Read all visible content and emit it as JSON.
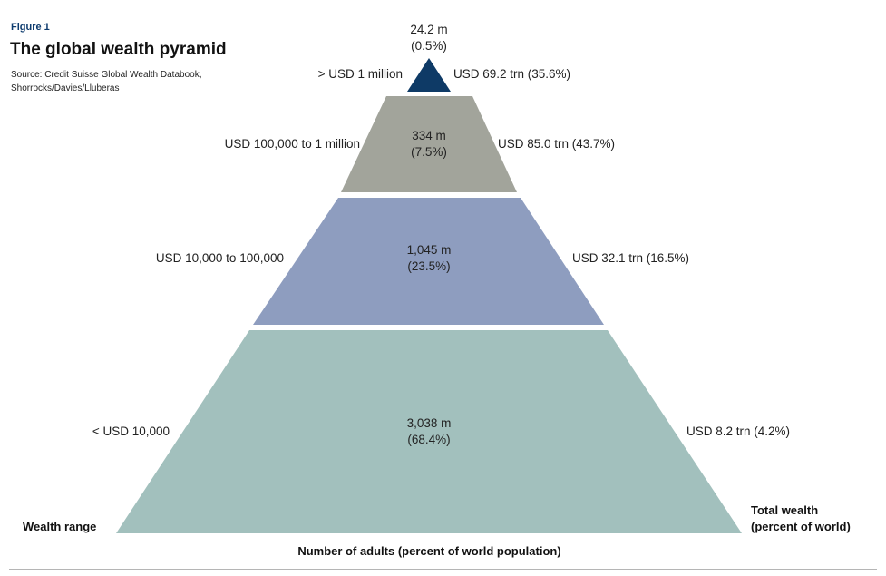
{
  "figure_label": "Figure 1",
  "title": "The global wealth pyramid",
  "source": "Source: Credit Suisse Global Wealth Databook, Shorrocks/Davies/Lluberas",
  "axis": {
    "left": "Wealth range",
    "right_line1": "Total wealth",
    "right_line2": "(percent of world)",
    "bottom": "Number of adults (percent of world population)"
  },
  "tiers": [
    {
      "range": "> USD 1 million",
      "adults": "24.2 m",
      "adults_pct": "(0.5%)",
      "wealth": "USD 69.2 trn (35.6%)",
      "color": "#0e3a66"
    },
    {
      "range": "USD 100,000 to 1 million",
      "adults": "334 m",
      "adults_pct": "(7.5%)",
      "wealth": "USD 85.0 trn (43.7%)",
      "color": "#a2a49b"
    },
    {
      "range": "USD 10,000 to 100,000",
      "adults": "1,045 m",
      "adults_pct": "(23.5%)",
      "wealth": "USD 32.1 trn (16.5%)",
      "color": "#8e9dbf"
    },
    {
      "range": "< USD 10,000",
      "adults": "3,038 m",
      "adults_pct": "(68.4%)",
      "wealth": "USD 8.2 trn (4.2%)",
      "color": "#a2c0bd"
    }
  ]
}
